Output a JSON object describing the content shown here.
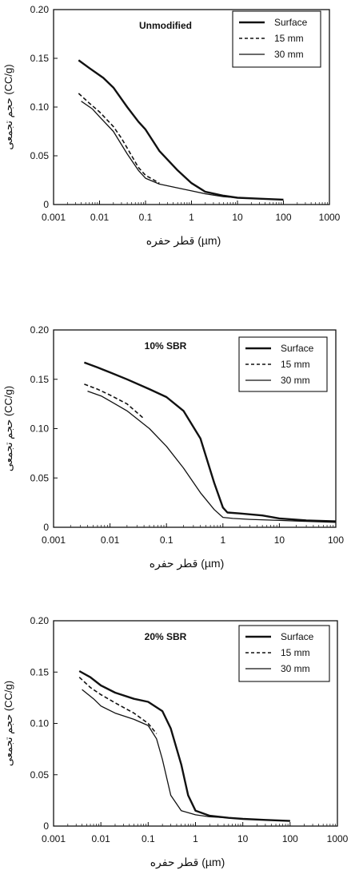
{
  "chart_data": [
    {
      "type": "line",
      "title": "Unmodified",
      "xlabel": "قطر حفره (µm)",
      "ylabel": "حجم تجمعی (CC/g)",
      "xscale": "log",
      "xlim": [
        0.001,
        1000
      ],
      "ylim": [
        0,
        0.2
      ],
      "xticks": [
        0.001,
        0.01,
        0.1,
        1,
        10,
        100,
        1000
      ],
      "xtick_labels": [
        "0.001",
        "0.01",
        "0.1",
        "1",
        "10",
        "100",
        "1000"
      ],
      "yticks": [
        0,
        0.05,
        0.1,
        0.15,
        0.2
      ],
      "ytick_labels": [
        "0",
        "0.05",
        "0.10",
        "0.15",
        "0.20"
      ],
      "grid": false,
      "legend_position": "top-right",
      "series": [
        {
          "name": "Surface",
          "style": "solid-thick",
          "x": [
            0.0035,
            0.006,
            0.012,
            0.02,
            0.04,
            0.07,
            0.1,
            0.2,
            0.5,
            1,
            2,
            5,
            10,
            30,
            100
          ],
          "y": [
            0.148,
            0.14,
            0.13,
            0.12,
            0.1,
            0.085,
            0.077,
            0.055,
            0.035,
            0.022,
            0.013,
            0.009,
            0.007,
            0.006,
            0.005
          ]
        },
        {
          "name": "15 mm",
          "style": "dashed",
          "x": [
            0.0035,
            0.006,
            0.01,
            0.02,
            0.03,
            0.05,
            0.07,
            0.1,
            0.2
          ],
          "y": [
            0.114,
            0.104,
            0.095,
            0.08,
            0.068,
            0.05,
            0.038,
            0.03,
            0.022
          ]
        },
        {
          "name": "30 mm",
          "style": "solid-thin",
          "x": [
            0.004,
            0.007,
            0.01,
            0.02,
            0.04,
            0.07,
            0.1,
            0.2,
            0.5,
            1,
            2,
            5,
            10,
            30,
            100
          ],
          "y": [
            0.106,
            0.098,
            0.09,
            0.075,
            0.052,
            0.035,
            0.027,
            0.021,
            0.017,
            0.014,
            0.011,
            0.008,
            0.007,
            0.006,
            0.005
          ]
        }
      ]
    },
    {
      "type": "line",
      "title": "10% SBR",
      "xlabel": "قطر حفره (µm)",
      "ylabel": "حجم تجمعی (CC/g)",
      "xscale": "log",
      "xlim": [
        0.001,
        100
      ],
      "ylim": [
        0,
        0.2
      ],
      "xticks": [
        0.001,
        0.01,
        0.1,
        1,
        10,
        100
      ],
      "xtick_labels": [
        "0.001",
        "0.01",
        "0.1",
        "1",
        "10",
        "100"
      ],
      "yticks": [
        0,
        0.05,
        0.1,
        0.15,
        0.2
      ],
      "ytick_labels": [
        "0",
        "0.05",
        "0.10",
        "0.15",
        "0.20"
      ],
      "grid": false,
      "legend_position": "top-right",
      "series": [
        {
          "name": "Surface",
          "style": "solid-thick",
          "x": [
            0.0035,
            0.006,
            0.01,
            0.02,
            0.05,
            0.1,
            0.2,
            0.4,
            0.7,
            1,
            1.2,
            2,
            5,
            10,
            30,
            100
          ],
          "y": [
            0.167,
            0.162,
            0.157,
            0.15,
            0.14,
            0.132,
            0.118,
            0.09,
            0.045,
            0.02,
            0.015,
            0.014,
            0.012,
            0.009,
            0.007,
            0.006
          ]
        },
        {
          "name": "15 mm",
          "style": "dashed",
          "x": [
            0.0035,
            0.006,
            0.01,
            0.02,
            0.04
          ],
          "y": [
            0.145,
            0.14,
            0.134,
            0.125,
            0.11
          ]
        },
        {
          "name": "30 mm",
          "style": "solid-thin",
          "x": [
            0.004,
            0.007,
            0.01,
            0.02,
            0.05,
            0.1,
            0.2,
            0.4,
            0.7,
            1,
            1.5,
            3,
            10,
            30,
            100
          ],
          "y": [
            0.138,
            0.133,
            0.128,
            0.118,
            0.1,
            0.082,
            0.06,
            0.035,
            0.018,
            0.01,
            0.009,
            0.008,
            0.007,
            0.006,
            0.005
          ]
        }
      ]
    },
    {
      "type": "line",
      "title": "20% SBR",
      "xlabel": "قطر حفره (µm)",
      "ylabel": "حجم تجمعی (CC/g)",
      "xscale": "log",
      "xlim": [
        0.001,
        1000
      ],
      "ylim": [
        0,
        0.2
      ],
      "xticks": [
        0.001,
        0.01,
        0.1,
        1,
        10,
        100,
        1000
      ],
      "xtick_labels": [
        "0.001",
        "0.01",
        "0.1",
        "1",
        "10",
        "100",
        "1000"
      ],
      "yticks": [
        0,
        0.05,
        0.1,
        0.15,
        0.2
      ],
      "ytick_labels": [
        "0",
        "0.05",
        "0.10",
        "0.15",
        "0.20"
      ],
      "grid": false,
      "legend_position": "top-right",
      "series": [
        {
          "name": "Surface",
          "style": "solid-thick",
          "x": [
            0.0035,
            0.006,
            0.01,
            0.02,
            0.05,
            0.1,
            0.2,
            0.3,
            0.5,
            0.7,
            1,
            2,
            5,
            10,
            30,
            100
          ],
          "y": [
            0.151,
            0.145,
            0.137,
            0.13,
            0.124,
            0.121,
            0.112,
            0.095,
            0.06,
            0.03,
            0.015,
            0.01,
            0.008,
            0.007,
            0.006,
            0.005
          ]
        },
        {
          "name": "15 mm",
          "style": "dashed",
          "x": [
            0.0035,
            0.006,
            0.01,
            0.02,
            0.05,
            0.1,
            0.15
          ],
          "y": [
            0.145,
            0.135,
            0.128,
            0.12,
            0.11,
            0.1,
            0.09
          ]
        },
        {
          "name": "30 mm",
          "style": "solid-thin",
          "x": [
            0.004,
            0.007,
            0.01,
            0.02,
            0.05,
            0.1,
            0.15,
            0.2,
            0.3,
            0.5,
            1,
            2,
            5,
            10,
            30,
            100
          ],
          "y": [
            0.133,
            0.124,
            0.117,
            0.11,
            0.104,
            0.098,
            0.085,
            0.065,
            0.03,
            0.015,
            0.011,
            0.009,
            0.008,
            0.007,
            0.006,
            0.005
          ]
        }
      ]
    }
  ]
}
